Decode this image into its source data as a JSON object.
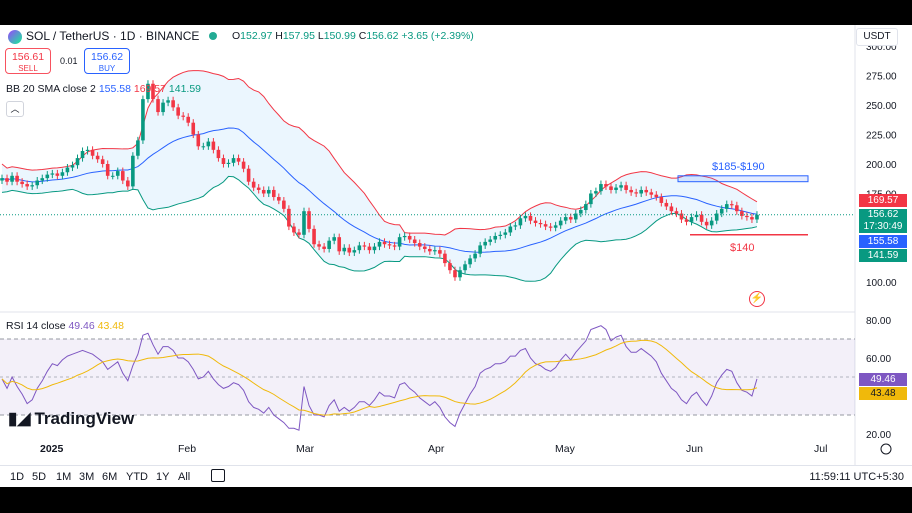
{
  "header": {
    "symbol": "SOL / TetherUS · 1D · BINANCE",
    "ohlc_o_label": "O",
    "ohlc_o": "152.97",
    "ohlc_h_label": "H",
    "ohlc_h": "157.95",
    "ohlc_l_label": "L",
    "ohlc_l": "150.99",
    "ohlc_c_label": "C",
    "ohlc_c": "156.62",
    "ohlc_change": "+3.65 (+2.39%)",
    "currency": "USDT"
  },
  "trade": {
    "sell_price": "156.61",
    "sell_label": "SELL",
    "spread": "0.01",
    "buy_price": "156.62",
    "buy_label": "BUY"
  },
  "bb_legend": {
    "name": "BB 20 SMA close 2",
    "basis": "155.58",
    "upper": "169.57",
    "lower": "141.59"
  },
  "rsi_legend": {
    "name": "RSI 14 close",
    "rsi": "49.46",
    "ma": "43.48"
  },
  "price_axis": {
    "ticks": [
      "300.00",
      "275.00",
      "250.00",
      "225.00",
      "200.00",
      "175.00",
      "100.00"
    ]
  },
  "rsi_axis": {
    "ticks": [
      "80.00",
      "60.00",
      "20.00"
    ]
  },
  "time_axis": {
    "labels": [
      "2025",
      "Feb",
      "Mar",
      "Apr",
      "May",
      "Jun",
      "Jul"
    ]
  },
  "price_tags": {
    "upper": "169.57",
    "last": "156.62",
    "countdown": "17:30:49",
    "basis": "155.58",
    "lower": "141.59",
    "rsi": "49.46",
    "rsi_ma": "43.48"
  },
  "annotations": {
    "resistance": "$185-$190",
    "support": "$140"
  },
  "toolbar": {
    "timeframes": [
      "1D",
      "5D",
      "1M",
      "3M",
      "6M",
      "YTD",
      "1Y",
      "All"
    ],
    "clock": "11:59:11 UTC+5:30"
  },
  "logo": "TradingView",
  "colors": {
    "up": "#089981",
    "down": "#f23645",
    "basis": "#2962ff",
    "upper": "#f23645",
    "lower": "#089981",
    "rsi": "#7e57c2",
    "rsi_ma": "#f0b90b"
  },
  "chart_data": [
    {
      "type": "candlestick",
      "title": "SOL / TetherUS · 1D · BINANCE",
      "x_range": [
        "2024-12-16",
        "2025-06-14"
      ],
      "ylim": [
        90,
        290
      ],
      "series": [
        {
          "name": "close",
          "values": [
            188,
            185,
            190,
            185,
            183,
            181,
            182,
            186,
            188,
            191,
            192,
            190,
            193,
            197,
            199,
            205,
            211,
            212,
            207,
            204,
            200,
            190,
            190,
            194,
            186,
            181,
            207,
            220,
            255,
            268,
            255,
            244,
            252,
            254,
            248,
            241,
            240,
            235,
            225,
            215,
            215,
            219,
            212,
            205,
            200,
            201,
            205,
            202,
            196,
            185,
            180,
            178,
            175,
            178,
            172,
            169,
            162,
            147,
            142,
            140,
            160,
            145,
            132,
            130,
            128,
            135,
            138,
            126,
            129,
            125,
            127,
            131,
            130,
            127,
            130,
            134,
            132,
            131,
            130,
            138,
            139,
            136,
            133,
            130,
            128,
            126,
            127,
            124,
            116,
            110,
            104,
            110,
            115,
            120,
            124,
            131,
            134,
            136,
            139,
            140,
            142,
            147,
            148,
            154,
            156,
            152,
            150,
            149,
            147,
            146,
            148,
            152,
            155,
            153,
            158,
            161,
            166,
            175,
            177,
            183,
            181,
            178,
            180,
            182,
            178,
            176,
            175,
            178,
            176,
            174,
            172,
            167,
            164,
            160,
            158,
            153,
            151,
            155,
            157,
            151,
            148,
            152,
            158,
            162,
            166,
            165,
            160,
            156,
            155,
            153,
            157
          ],
          "high_low_note": "daily candles; wicks approx ±3"
        }
      ],
      "bollinger": {
        "basis_last": 155.58,
        "upper_last": 169.57,
        "lower_last": 141.59
      },
      "levels": [
        {
          "label": "$185-$190",
          "from": 185,
          "to": 190
        },
        {
          "label": "$140",
          "value": 140
        }
      ]
    },
    {
      "type": "line",
      "title": "RSI 14 close",
      "ylim": [
        20,
        80
      ],
      "bands": [
        30,
        70
      ],
      "series": [
        {
          "name": "RSI",
          "values": [
            49,
            44,
            50,
            45,
            41,
            36,
            38,
            44,
            48,
            53,
            57,
            56,
            59,
            61,
            62,
            63,
            64,
            63,
            62,
            60,
            58,
            54,
            56,
            58,
            52,
            48,
            56,
            62,
            72,
            73,
            67,
            62,
            66,
            66,
            64,
            60,
            60,
            58,
            54,
            49,
            50,
            53,
            49,
            46,
            44,
            45,
            47,
            46,
            43,
            37,
            34,
            33,
            31,
            34,
            30,
            28,
            26,
            23,
            23,
            22,
            45,
            35,
            30,
            30,
            29,
            35,
            38,
            32,
            34,
            32,
            34,
            37,
            37,
            35,
            38,
            42,
            40,
            40,
            39,
            46,
            47,
            44,
            42,
            39,
            37,
            35,
            37,
            34,
            29,
            26,
            24,
            31,
            36,
            41,
            45,
            52,
            54,
            55,
            57,
            57,
            58,
            61,
            61,
            64,
            65,
            60,
            57,
            56,
            54,
            53,
            55,
            59,
            62,
            59,
            63,
            66,
            69,
            75,
            76,
            77,
            75,
            69,
            71,
            72,
            66,
            63,
            63,
            65,
            63,
            61,
            58,
            52,
            48,
            44,
            42,
            38,
            36,
            40,
            42,
            38,
            35,
            40,
            47,
            51,
            54,
            53,
            47,
            43,
            42,
            40,
            49
          ]
        },
        {
          "name": "RSI MA",
          "values_note": "smoothed moving average of RSI"
        }
      ]
    }
  ]
}
